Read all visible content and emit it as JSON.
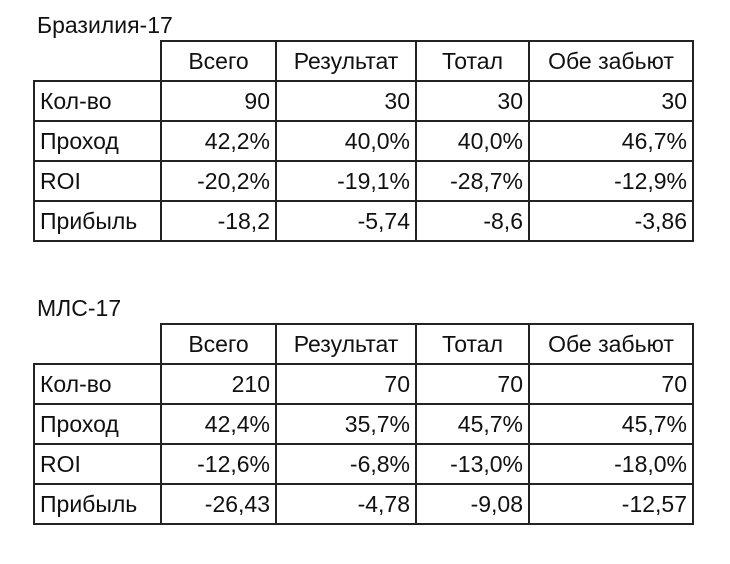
{
  "tables": [
    {
      "title": "Бразилия-17",
      "header": [
        "Всего",
        "Результат",
        "Тотал",
        "Обе забьют"
      ],
      "rows": [
        {
          "label": "Кол-во",
          "cells": [
            "90",
            "30",
            "30",
            "30"
          ]
        },
        {
          "label": "Проход",
          "cells": [
            "42,2%",
            "40,0%",
            "40,0%",
            "46,7%"
          ]
        },
        {
          "label": "ROI",
          "cells": [
            "-20,2%",
            "-19,1%",
            "-28,7%",
            "-12,9%"
          ]
        },
        {
          "label": "Прибыль",
          "cells": [
            "-18,2",
            "-5,74",
            "-8,6",
            "-3,86"
          ]
        }
      ]
    },
    {
      "title": "МЛС-17",
      "header": [
        "Всего",
        "Результат",
        "Тотал",
        "Обе забьют"
      ],
      "rows": [
        {
          "label": "Кол-во",
          "cells": [
            "210",
            "70",
            "70",
            "70"
          ]
        },
        {
          "label": "Проход",
          "cells": [
            "42,4%",
            "35,7%",
            "45,7%",
            "45,7%"
          ]
        },
        {
          "label": "ROI",
          "cells": [
            "-12,6%",
            "-6,8%",
            "-13,0%",
            "-18,0%"
          ]
        },
        {
          "label": "Прибыль",
          "cells": [
            "-26,43",
            "-4,78",
            "-9,08",
            "-12,57"
          ]
        }
      ]
    }
  ]
}
